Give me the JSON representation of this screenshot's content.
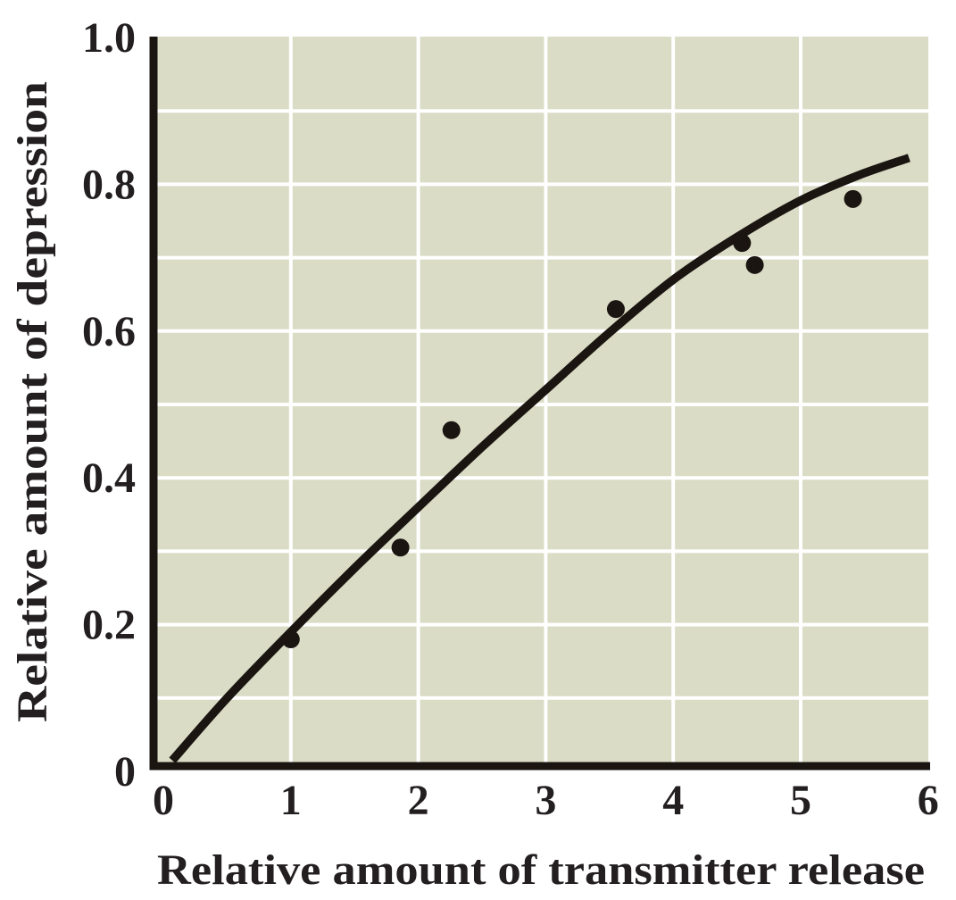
{
  "chart_data": {
    "type": "scatter",
    "title": "",
    "xlabel": "Relative amount of transmitter release",
    "ylabel": "Relative amount of depression",
    "xlim": [
      0,
      6
    ],
    "ylim": [
      0,
      1.0
    ],
    "x_ticks": {
      "values": [
        0,
        1,
        2,
        3,
        4,
        5,
        6
      ],
      "labels": [
        "0",
        "1",
        "2",
        "3",
        "4",
        "5",
        "6"
      ]
    },
    "y_ticks": {
      "values": [
        1.0,
        0.8,
        0.6,
        0.4,
        0.2,
        0
      ],
      "labels": [
        "1.0",
        "0.8",
        "0.6",
        "0.4",
        "0.2",
        "0"
      ]
    },
    "grid": {
      "vertical_at": [
        1,
        2,
        3,
        4,
        5
      ],
      "horizontal_step": 0.1,
      "color": "#ffffff"
    },
    "legend": "none",
    "series": [
      {
        "name": "measured points",
        "type": "scatter",
        "points": [
          [
            1.0,
            0.18
          ],
          [
            1.86,
            0.305
          ],
          [
            2.26,
            0.465
          ],
          [
            3.55,
            0.63
          ],
          [
            4.54,
            0.72
          ],
          [
            4.64,
            0.69
          ],
          [
            5.41,
            0.78
          ]
        ]
      },
      {
        "name": "fitted curve",
        "type": "line",
        "points": [
          [
            0.07,
            0.015
          ],
          [
            0.5,
            0.1
          ],
          [
            1.0,
            0.19
          ],
          [
            1.5,
            0.277
          ],
          [
            2.0,
            0.36
          ],
          [
            2.5,
            0.442
          ],
          [
            3.0,
            0.52
          ],
          [
            3.5,
            0.598
          ],
          [
            4.0,
            0.67
          ],
          [
            4.5,
            0.728
          ],
          [
            5.0,
            0.778
          ],
          [
            5.45,
            0.812
          ],
          [
            5.85,
            0.836
          ]
        ]
      }
    ],
    "colors": {
      "plot_background": "#dadcc5",
      "gridline": "#ffffff",
      "marker": "#1b1512",
      "curve": "#1b1512",
      "axis": "#1b1512",
      "text": "#231f20"
    }
  }
}
